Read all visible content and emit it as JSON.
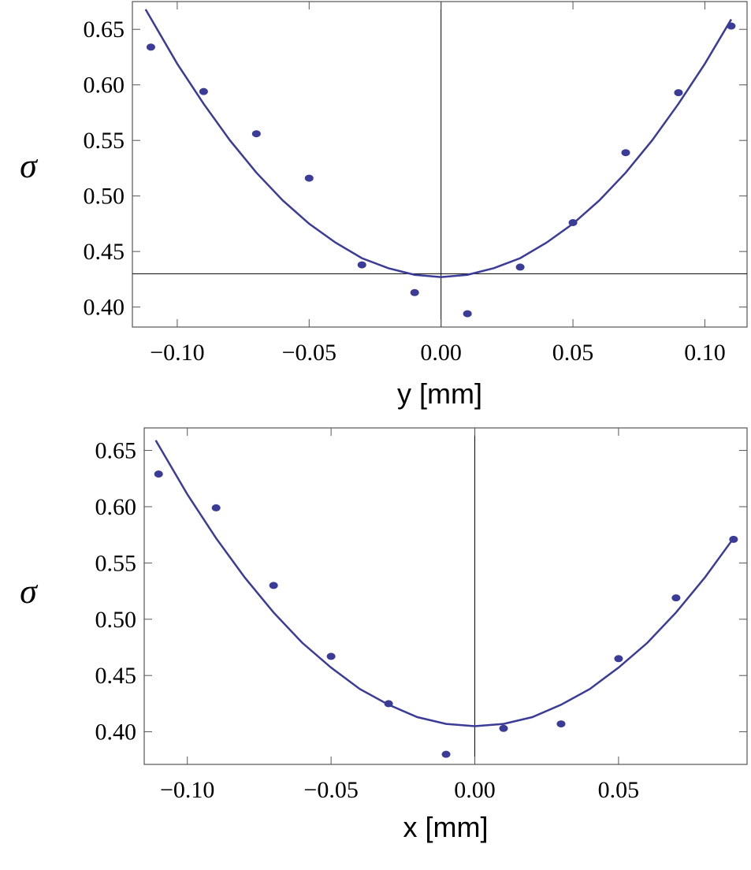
{
  "chart_data": [
    {
      "type": "scatter",
      "x_label": "y [mm]",
      "y_label": "σ",
      "xlim": [
        -0.117,
        0.116
      ],
      "ylim": [
        0.382,
        0.675
      ],
      "xticks": [
        {
          "value": -0.1,
          "label": "−0.10"
        },
        {
          "value": -0.05,
          "label": "−0.05"
        },
        {
          "value": 0,
          "label": "0.00"
        },
        {
          "value": 0.05,
          "label": "0.05"
        },
        {
          "value": 0.1,
          "label": "0.10"
        }
      ],
      "yticks": [
        {
          "value": 0.4,
          "label": "0.40"
        },
        0.45,
        {
          "value": 0.5,
          "label": "0.50"
        },
        0.55,
        {
          "value": 0.6,
          "label": "0.60"
        },
        0.65
      ],
      "origin_x": 0,
      "origin_y": 0.43,
      "series": [
        {
          "kind": "points",
          "color": "#3b3b98",
          "x": [
            -0.11,
            -0.09,
            -0.07,
            -0.05,
            -0.03,
            -0.01,
            0.01,
            0.03,
            0.05,
            0.07,
            0.09,
            0.11
          ],
          "values": [
            0.634,
            0.594,
            0.556,
            0.516,
            0.438,
            0.413,
            0.394,
            0.436,
            0.476,
            0.539,
            0.593,
            0.653
          ]
        },
        {
          "kind": "line",
          "color": "#3b3b98",
          "x": [
            -0.112,
            -0.1,
            -0.09,
            -0.08,
            -0.07,
            -0.06,
            -0.05,
            -0.04,
            -0.03,
            -0.02,
            -0.01,
            0,
            0.01,
            0.02,
            0.03,
            0.04,
            0.05,
            0.06,
            0.07,
            0.08,
            0.09,
            0.1,
            0.11
          ],
          "values": [
            0.668,
            0.619,
            0.583,
            0.55,
            0.521,
            0.496,
            0.475,
            0.458,
            0.444,
            0.435,
            0.429,
            0.427,
            0.429,
            0.435,
            0.444,
            0.458,
            0.475,
            0.496,
            0.521,
            0.55,
            0.583,
            0.619,
            0.659
          ]
        }
      ]
    },
    {
      "type": "scatter",
      "x_label": "x [mm]",
      "y_label": "σ",
      "xlim": [
        -0.115,
        0.0947
      ],
      "ylim": [
        0.371,
        0.67
      ],
      "xticks": [
        {
          "value": -0.1,
          "label": "−0.10"
        },
        {
          "value": -0.05,
          "label": "−0.05"
        },
        {
          "value": 0,
          "label": "0.00"
        },
        {
          "value": 0.05,
          "label": "0.05"
        }
      ],
      "yticks": [
        {
          "value": 0.4,
          "label": "0.40"
        },
        0.45,
        {
          "value": 0.5,
          "label": "0.50"
        },
        0.55,
        {
          "value": 0.6,
          "label": "0.60"
        },
        0.65
      ],
      "origin_x": 0,
      "series": [
        {
          "kind": "points",
          "color": "#3b3b98",
          "x": [
            -0.11,
            -0.09,
            -0.07,
            -0.05,
            -0.03,
            -0.01,
            0.01,
            0.03,
            0.05,
            0.07,
            0.09
          ],
          "values": [
            0.629,
            0.599,
            0.53,
            0.467,
            0.425,
            0.38,
            0.403,
            0.407,
            0.465,
            0.519,
            0.571
          ]
        },
        {
          "kind": "line",
          "color": "#3b3b98",
          "x": [
            -0.111,
            -0.1,
            -0.09,
            -0.08,
            -0.07,
            -0.06,
            -0.05,
            -0.04,
            -0.03,
            -0.02,
            -0.01,
            0,
            0.01,
            0.02,
            0.03,
            0.04,
            0.05,
            0.06,
            0.07,
            0.08,
            0.09
          ],
          "values": [
            0.659,
            0.611,
            0.572,
            0.537,
            0.506,
            0.479,
            0.457,
            0.438,
            0.424,
            0.413,
            0.407,
            0.405,
            0.407,
            0.413,
            0.424,
            0.438,
            0.457,
            0.479,
            0.506,
            0.537,
            0.572
          ]
        }
      ]
    }
  ]
}
